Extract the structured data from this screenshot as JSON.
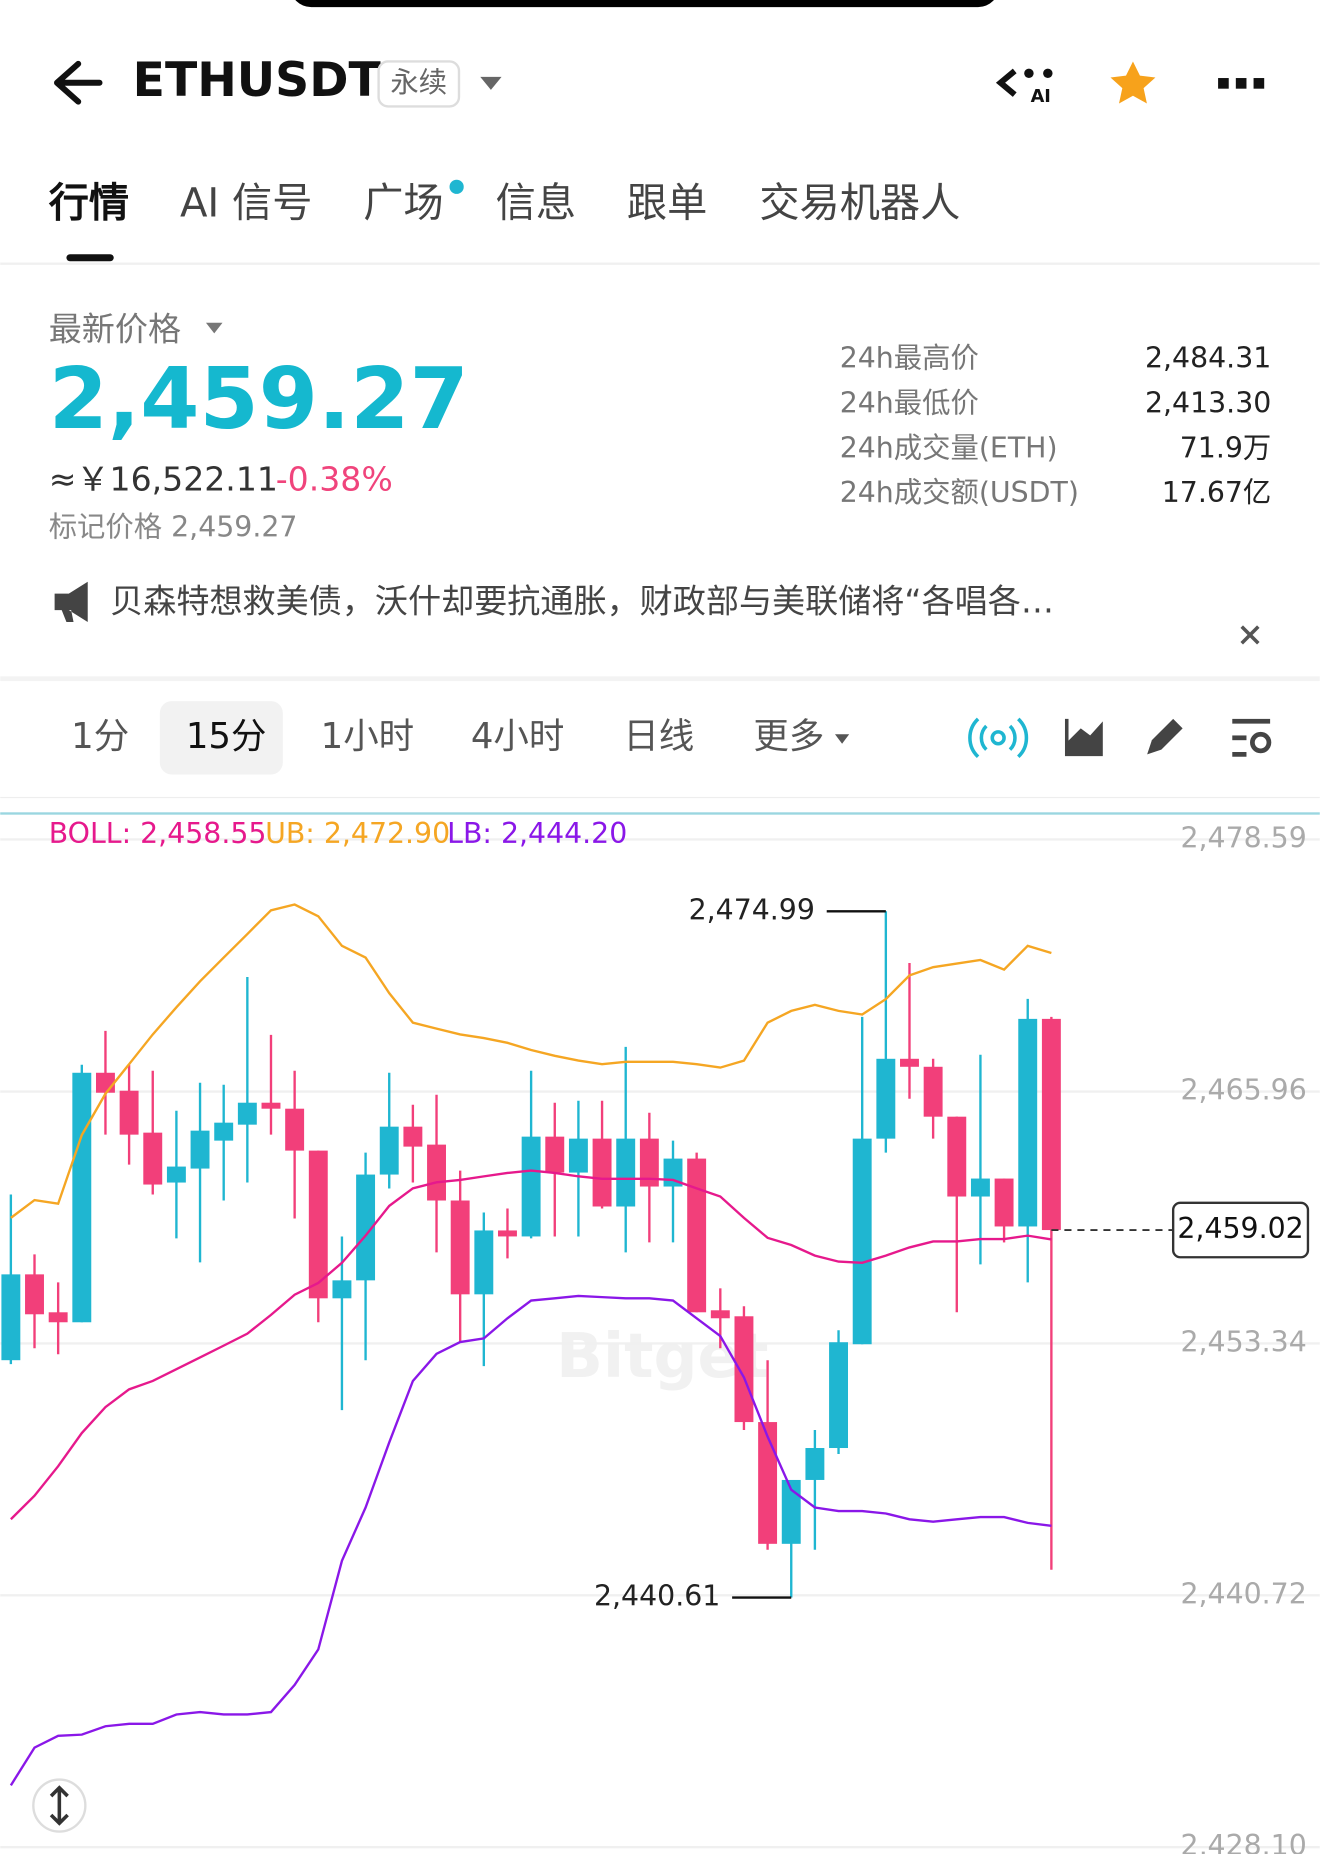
{
  "header": {
    "symbol": "ETHUSDT",
    "badge": "永续",
    "ai_icon": "AI"
  },
  "tabs": [
    "行情",
    "AI 信号",
    "广场",
    "信息",
    "跟单",
    "交易机器人"
  ],
  "price": {
    "label": "最新价格",
    "last": "2,459.27",
    "cny": "≈￥16,522.11",
    "change": "-0.38%",
    "mark": "标记价格 2,459.27",
    "stats": [
      {
        "label": "24h最高价",
        "value": "2,484.31"
      },
      {
        "label": "24h最低价",
        "value": "2,413.30"
      },
      {
        "label": "24h成交量(ETH)",
        "value": "71.9万"
      },
      {
        "label": "24h成交额(USDT)",
        "value": "17.67亿"
      }
    ]
  },
  "news": "贝森特想救美债，沃什却要抗通胀，财政部与美联储将“各唱各…",
  "intervals": [
    "1分",
    "15分",
    "1小时",
    "4小时",
    "日线",
    "更多"
  ],
  "watermark": "Bitget",
  "chart_data": {
    "type": "candlestick",
    "up_color": "#1fb6d1",
    "down_color": "#f23f7a",
    "open": [
      2452.5,
      2456.8,
      2454.9,
      2454.4,
      2466.9,
      2466.0,
      2463.9,
      2461.4,
      2462.1,
      2463.5,
      2464.3,
      2465.4,
      2465.1,
      2463.0,
      2455.6,
      2456.5,
      2461.8,
      2464.2,
      2463.3,
      2460.5,
      2455.8,
      2459.0,
      2458.7,
      2463.7,
      2461.9,
      2463.6,
      2460.2,
      2463.6,
      2461.2,
      2462.6,
      2455.0,
      2454.7,
      2449.4,
      2443.3,
      2446.5,
      2448.1,
      2453.3,
      2463.6,
      2467.6,
      2467.2,
      2464.7,
      2460.7,
      2461.6,
      2459.2,
      2469.6
    ],
    "high": [
      2460.8,
      2457.8,
      2456.4,
      2467.3,
      2469.0,
      2467.3,
      2467.0,
      2465.0,
      2466.4,
      2466.3,
      2471.7,
      2468.8,
      2467.0,
      2463.0,
      2458.7,
      2462.9,
      2466.9,
      2465.3,
      2465.8,
      2462.0,
      2459.9,
      2460.1,
      2467.0,
      2465.4,
      2465.5,
      2465.5,
      2468.2,
      2464.9,
      2463.5,
      2462.9,
      2456.1,
      2455.2,
      2452.5,
      2446.5,
      2449.0,
      2454.0,
      2469.7,
      2474.99,
      2472.4,
      2467.6,
      2464.7,
      2467.8,
      2461.6,
      2470.6,
      2469.7
    ],
    "low": [
      2452.3,
      2453.1,
      2452.8,
      2454.4,
      2463.8,
      2462.3,
      2460.8,
      2458.6,
      2457.4,
      2460.5,
      2461.4,
      2463.8,
      2459.6,
      2454.4,
      2450.0,
      2452.5,
      2461.1,
      2461.4,
      2457.9,
      2453.4,
      2452.2,
      2457.6,
      2458.6,
      2458.7,
      2458.7,
      2460.1,
      2457.9,
      2458.4,
      2458.4,
      2454.9,
      2453.1,
      2449.0,
      2443.0,
      2440.61,
      2443.0,
      2447.8,
      2453.3,
      2462.9,
      2465.6,
      2463.6,
      2454.9,
      2457.3,
      2458.4,
      2456.4,
      2442.0
    ],
    "close": [
      2456.8,
      2454.8,
      2454.4,
      2466.9,
      2465.9,
      2463.8,
      2461.3,
      2462.2,
      2464.0,
      2464.4,
      2465.4,
      2465.1,
      2463.0,
      2455.6,
      2456.5,
      2461.8,
      2464.2,
      2463.2,
      2460.5,
      2455.8,
      2459.0,
      2458.7,
      2463.7,
      2461.9,
      2463.6,
      2460.2,
      2463.6,
      2461.2,
      2462.6,
      2454.9,
      2454.6,
      2449.4,
      2443.3,
      2446.5,
      2448.1,
      2453.4,
      2463.6,
      2467.6,
      2467.2,
      2464.7,
      2460.7,
      2461.6,
      2459.2,
      2469.6,
      2459.02
    ],
    "series": [
      {
        "name": "BOLL: 2,458.55",
        "color": "#e6198c",
        "values": [
          2444.53,
          2445.71,
          2447.19,
          2448.85,
          2450.15,
          2451.04,
          2451.46,
          2452.05,
          2452.64,
          2453.23,
          2453.83,
          2454.77,
          2455.78,
          2456.37,
          2457.38,
          2458.74,
          2460.23,
          2461.11,
          2461.41,
          2461.53,
          2461.71,
          2461.88,
          2462.0,
          2461.88,
          2461.71,
          2461.59,
          2461.59,
          2461.59,
          2461.53,
          2461.11,
          2460.7,
          2459.63,
          2458.63,
          2458.27,
          2457.74,
          2457.44,
          2457.38,
          2457.74,
          2458.15,
          2458.45,
          2458.45,
          2458.57,
          2458.57,
          2458.74,
          2458.55
        ]
      },
      {
        "name": "UB: 2,472.90",
        "color": "#f5a623",
        "values": [
          2459.63,
          2460.52,
          2460.34,
          2463.78,
          2465.85,
          2467.33,
          2468.82,
          2470.18,
          2471.48,
          2472.67,
          2473.85,
          2475.04,
          2475.33,
          2474.74,
          2473.26,
          2472.67,
          2470.89,
          2469.41,
          2469.11,
          2468.82,
          2468.64,
          2468.4,
          2468.04,
          2467.75,
          2467.51,
          2467.33,
          2467.45,
          2467.45,
          2467.45,
          2467.33,
          2467.16,
          2467.51,
          2469.41,
          2470.0,
          2470.3,
          2470.0,
          2469.82,
          2470.59,
          2471.78,
          2472.19,
          2472.37,
          2472.55,
          2472.07,
          2473.26,
          2472.9
        ]
      },
      {
        "name": "LB: 2,444.20",
        "color": "#8a17e8",
        "values": [
          2431.2,
          2433.09,
          2433.68,
          2433.74,
          2434.16,
          2434.28,
          2434.28,
          2434.75,
          2434.87,
          2434.75,
          2434.75,
          2434.87,
          2436.23,
          2438.01,
          2442.45,
          2445.12,
          2448.38,
          2451.46,
          2452.82,
          2453.41,
          2453.59,
          2454.6,
          2455.49,
          2455.6,
          2455.72,
          2455.66,
          2455.6,
          2455.6,
          2455.49,
          2454.6,
          2453.71,
          2451.64,
          2448.67,
          2446.01,
          2445.12,
          2444.94,
          2444.94,
          2444.82,
          2444.53,
          2444.41,
          2444.53,
          2444.64,
          2444.64,
          2444.35,
          2444.2
        ]
      }
    ],
    "ylim": [
      2427.76,
      2479.89
    ],
    "yticks": [
      {
        "value": 2478.59,
        "label": "2,478.59"
      },
      {
        "value": 2465.96,
        "label": "2,465.96"
      },
      {
        "value": 2453.34,
        "label": "2,453.34"
      },
      {
        "value": 2440.72,
        "label": "2,440.72"
      },
      {
        "value": 2428.1,
        "label": "2,428.10"
      }
    ],
    "grid": true,
    "annotations": [
      {
        "value": 2474.99,
        "label": "2,474.99"
      },
      {
        "value": 2440.61,
        "label": "2,440.61"
      }
    ],
    "last_price": {
      "value": 2459.02,
      "label": "2,459.02"
    }
  }
}
